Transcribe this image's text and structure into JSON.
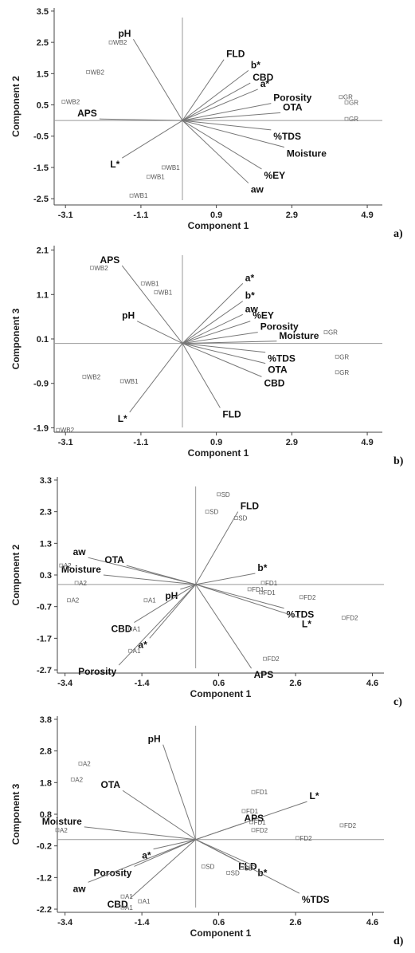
{
  "chart_data": [
    {
      "type": "biplot",
      "panel_label": "a)",
      "xlabel": "Component 1",
      "ylabel": "Component 2",
      "xlim": [
        -3.4,
        5.3
      ],
      "ylim": [
        -2.7,
        3.6
      ],
      "xticks": [
        "-3.1",
        "-1.1",
        "0.9",
        "2.9",
        "4.9"
      ],
      "yticks": [
        "3.5",
        "2.5",
        "1.5",
        "0.5",
        "-0.5",
        "-1.5",
        "-2.5"
      ],
      "vectors": [
        {
          "name": "pH",
          "x": -1.3,
          "y": 2.6
        },
        {
          "name": "FLD",
          "x": 1.1,
          "y": 1.95
        },
        {
          "name": "b*",
          "x": 1.75,
          "y": 1.6
        },
        {
          "name": "CBD",
          "x": 1.8,
          "y": 1.2
        },
        {
          "name": "a*",
          "x": 2.0,
          "y": 1.0
        },
        {
          "name": "Porosity",
          "x": 2.35,
          "y": 0.55
        },
        {
          "name": "OTA",
          "x": 2.6,
          "y": 0.25
        },
        {
          "name": "APS",
          "x": -2.2,
          "y": 0.05
        },
        {
          "name": "%TDS",
          "x": 2.35,
          "y": -0.3
        },
        {
          "name": "Moisture",
          "x": 2.7,
          "y": -0.85
        },
        {
          "name": "L*",
          "x": -1.6,
          "y": -1.2
        },
        {
          "name": "%EY",
          "x": 2.1,
          "y": -1.55
        },
        {
          "name": "aw",
          "x": 1.75,
          "y": -2.0
        }
      ],
      "observations": [
        {
          "name": "WB2",
          "x": -1.9,
          "y": 2.5
        },
        {
          "name": "WB2",
          "x": -2.5,
          "y": 1.55
        },
        {
          "name": "WB2",
          "x": -3.15,
          "y": 0.6
        },
        {
          "name": "WB1",
          "x": -0.5,
          "y": -1.5
        },
        {
          "name": "WB1",
          "x": -0.9,
          "y": -1.8
        },
        {
          "name": "WB1",
          "x": -1.35,
          "y": -2.4
        },
        {
          "name": "GR",
          "x": 4.2,
          "y": 0.75
        },
        {
          "name": "GR",
          "x": 4.35,
          "y": 0.58
        },
        {
          "name": "GR",
          "x": 4.35,
          "y": 0.05
        }
      ]
    },
    {
      "type": "biplot",
      "panel_label": "b)",
      "xlabel": "Component 1",
      "ylabel": "Component 3",
      "xlim": [
        -3.4,
        5.3
      ],
      "ylim": [
        -2.0,
        2.2
      ],
      "xticks": [
        "-3.1",
        "-1.1",
        "0.9",
        "2.9",
        "4.9"
      ],
      "yticks": [
        "2.1",
        "1.1",
        "0.1",
        "-0.9",
        "-1.9"
      ],
      "vectors": [
        {
          "name": "APS",
          "x": -1.6,
          "y": 1.75
        },
        {
          "name": "pH",
          "x": -1.2,
          "y": 0.5
        },
        {
          "name": "a*",
          "x": 1.6,
          "y": 1.35
        },
        {
          "name": "b*",
          "x": 1.6,
          "y": 0.95
        },
        {
          "name": "aw",
          "x": 1.6,
          "y": 0.65
        },
        {
          "name": "%EY",
          "x": 1.8,
          "y": 0.5
        },
        {
          "name": "Porosity",
          "x": 2.0,
          "y": 0.25
        },
        {
          "name": "Moisture",
          "x": 2.5,
          "y": 0.05
        },
        {
          "name": "%TDS",
          "x": 2.2,
          "y": -0.2
        },
        {
          "name": "OTA",
          "x": 2.2,
          "y": -0.45
        },
        {
          "name": "CBD",
          "x": 2.1,
          "y": -0.75
        },
        {
          "name": "FLD",
          "x": 1.0,
          "y": -1.45
        },
        {
          "name": "L*",
          "x": -1.4,
          "y": -1.55
        }
      ],
      "observations": [
        {
          "name": "WB2",
          "x": -2.4,
          "y": 1.7
        },
        {
          "name": "WB1",
          "x": -1.05,
          "y": 1.35
        },
        {
          "name": "WB1",
          "x": -0.7,
          "y": 1.15
        },
        {
          "name": "WB2",
          "x": -2.6,
          "y": -0.75
        },
        {
          "name": "WB1",
          "x": -1.6,
          "y": -0.85
        },
        {
          "name": "WB2",
          "x": -3.3,
          "y": -1.95
        },
        {
          "name": "GR",
          "x": 3.8,
          "y": 0.25
        },
        {
          "name": "GR",
          "x": 4.1,
          "y": -0.3
        },
        {
          "name": "GR",
          "x": 4.1,
          "y": -0.65
        }
      ]
    },
    {
      "type": "biplot",
      "panel_label": "c)",
      "xlabel": "Component 1",
      "ylabel": "Component 2",
      "xlim": [
        -3.6,
        4.9
      ],
      "ylim": [
        -2.8,
        3.4
      ],
      "xticks": [
        "-3.4",
        "-1.4",
        "0.6",
        "2.6",
        "4.6"
      ],
      "yticks": [
        "3.3",
        "2.3",
        "1.3",
        "0.3",
        "-0.7",
        "-1.7",
        "-2.7"
      ],
      "vectors": [
        {
          "name": "aw",
          "x": -2.8,
          "y": 0.85
        },
        {
          "name": "OTA",
          "x": -1.8,
          "y": 0.6
        },
        {
          "name": "Moisture",
          "x": -2.4,
          "y": 0.3
        },
        {
          "name": "pH",
          "x": -0.4,
          "y": -0.15
        },
        {
          "name": "CBD",
          "x": -1.6,
          "y": -1.2
        },
        {
          "name": "a*",
          "x": -1.2,
          "y": -1.7
        },
        {
          "name": "Porosity",
          "x": -2.0,
          "y": -2.55
        },
        {
          "name": "FLD",
          "x": 1.1,
          "y": 2.3
        },
        {
          "name": "b*",
          "x": 1.55,
          "y": 0.35
        },
        {
          "name": "%TDS",
          "x": 2.3,
          "y": -0.75
        },
        {
          "name": "L*",
          "x": 2.7,
          "y": -1.05
        },
        {
          "name": "APS",
          "x": 1.45,
          "y": -2.65
        }
      ],
      "observations": [
        {
          "name": "SD",
          "x": 0.6,
          "y": 2.85
        },
        {
          "name": "SD",
          "x": 0.3,
          "y": 2.3
        },
        {
          "name": "SD",
          "x": 1.05,
          "y": 2.1
        },
        {
          "name": "A2",
          "x": -3.5,
          "y": 0.6
        },
        {
          "name": "A2",
          "x": -3.1,
          "y": 0.05
        },
        {
          "name": "A2",
          "x": -3.3,
          "y": -0.5
        },
        {
          "name": "A1",
          "x": -1.3,
          "y": -0.5
        },
        {
          "name": "A1",
          "x": -1.7,
          "y": -1.4
        },
        {
          "name": "A1",
          "x": -1.7,
          "y": -2.1
        },
        {
          "name": "FD1",
          "x": 1.75,
          "y": 0.05
        },
        {
          "name": "FD1",
          "x": 1.4,
          "y": -0.15
        },
        {
          "name": "FD1",
          "x": 1.7,
          "y": -0.25
        },
        {
          "name": "FD2",
          "x": 2.75,
          "y": -0.4
        },
        {
          "name": "FD2",
          "x": 3.85,
          "y": -1.05
        },
        {
          "name": "FD2",
          "x": 1.8,
          "y": -2.35
        }
      ]
    },
    {
      "type": "biplot",
      "panel_label": "d)",
      "xlabel": "Component 1",
      "ylabel": "Component 3",
      "xlim": [
        -3.6,
        4.9
      ],
      "ylim": [
        -2.3,
        3.9
      ],
      "xticks": [
        "-3.4",
        "-1.4",
        "0.6",
        "2.6",
        "4.6"
      ],
      "yticks": [
        "3.8",
        "2.8",
        "1.8",
        "0.8",
        "-0.2",
        "-1.2",
        "-2.2"
      ],
      "vectors": [
        {
          "name": "pH",
          "x": -0.85,
          "y": 3.0
        },
        {
          "name": "OTA",
          "x": -1.9,
          "y": 1.55
        },
        {
          "name": "Moisture",
          "x": -2.9,
          "y": 0.4
        },
        {
          "name": "a*",
          "x": -1.1,
          "y": -0.3
        },
        {
          "name": "Porosity",
          "x": -1.6,
          "y": -0.85
        },
        {
          "name": "aw",
          "x": -2.8,
          "y": -1.35
        },
        {
          "name": "CBD",
          "x": -1.7,
          "y": -1.85
        },
        {
          "name": "L*",
          "x": 2.9,
          "y": 1.2
        },
        {
          "name": "APS",
          "x": 1.2,
          "y": 0.5
        },
        {
          "name": "FLD",
          "x": 1.05,
          "y": -0.65
        },
        {
          "name": "b*",
          "x": 1.55,
          "y": -0.85
        },
        {
          "name": "%TDS",
          "x": 2.7,
          "y": -1.7
        }
      ],
      "observations": [
        {
          "name": "A2",
          "x": -3.0,
          "y": 2.4
        },
        {
          "name": "A2",
          "x": -3.2,
          "y": 1.9
        },
        {
          "name": "A2",
          "x": -3.6,
          "y": 0.3
        },
        {
          "name": "A1",
          "x": -1.9,
          "y": -1.8
        },
        {
          "name": "A1",
          "x": -1.9,
          "y": -2.15
        },
        {
          "name": "A1",
          "x": -1.45,
          "y": -1.95
        },
        {
          "name": "FD1",
          "x": 1.5,
          "y": 1.5
        },
        {
          "name": "FD1",
          "x": 1.25,
          "y": 0.9
        },
        {
          "name": "FD1",
          "x": 1.45,
          "y": 0.55
        },
        {
          "name": "FD2",
          "x": 1.5,
          "y": 0.3
        },
        {
          "name": "FD2",
          "x": 2.65,
          "y": 0.05
        },
        {
          "name": "FD2",
          "x": 3.8,
          "y": 0.45
        },
        {
          "name": "SD",
          "x": 1.2,
          "y": -0.9
        },
        {
          "name": "SD",
          "x": 0.2,
          "y": -0.85
        },
        {
          "name": "SD",
          "x": 0.85,
          "y": -1.05
        }
      ]
    }
  ]
}
